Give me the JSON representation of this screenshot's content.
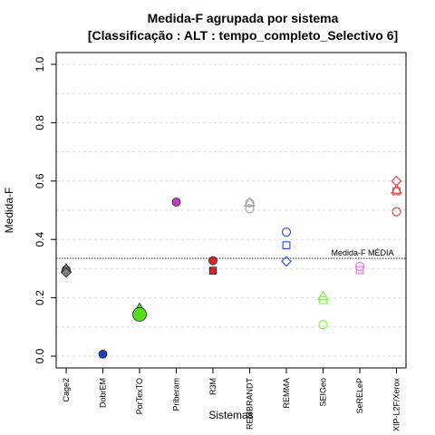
{
  "chart_data": {
    "type": "scatter",
    "title_lines": [
      "Medida-F agrupada por sistema",
      "[Classificação : ALT : tempo_completo_Selectivo 6]"
    ],
    "xlabel": "Sistemas",
    "ylabel": "Medida-F",
    "ylim": [
      0.0,
      1.0
    ],
    "yticks": [
      "0.0",
      "0.2",
      "0.4",
      "0.6",
      "0.8",
      "1.0"
    ],
    "grid": true,
    "categories": [
      "Cage2",
      "DobrEM",
      "PorTexTO",
      "Priberam",
      "R3M",
      "REMBRANDT",
      "REMMA",
      "SEIGeo",
      "SeRELeP",
      "XIP-L2F/Xerox"
    ],
    "reference_line": {
      "label": "Medida-F MÉDIA",
      "value": 0.335,
      "style": "dotted"
    },
    "points": [
      {
        "category": "Cage2",
        "shape": "circle",
        "value": 0.296,
        "color": "#7f7f7f",
        "filled": true
      },
      {
        "category": "Cage2",
        "shape": "triangle",
        "value": 0.3,
        "color": "#7f7f7f",
        "filled": true
      },
      {
        "category": "Cage2",
        "shape": "diamond",
        "value": 0.287,
        "color": "#7f7f7f",
        "filled": true
      },
      {
        "category": "DobrEM",
        "shape": "circle",
        "value": 0.007,
        "color": "#1f3fbf",
        "filled": true
      },
      {
        "category": "PorTexTO",
        "shape": "triangle",
        "value": 0.165,
        "color": "#55dd22",
        "filled": true
      },
      {
        "category": "PorTexTO",
        "shape": "diamond",
        "value": 0.15,
        "color": "#55dd22",
        "filled": true
      },
      {
        "category": "PorTexTO",
        "shape": "square",
        "value": 0.15,
        "color": "#55dd22",
        "filled": true
      },
      {
        "category": "PorTexTO",
        "shape": "circle",
        "value": 0.143,
        "color": "#55dd22",
        "filled": true,
        "size": "large"
      },
      {
        "category": "Priberam",
        "shape": "circle",
        "value": 0.528,
        "color": "#cc33cc",
        "filled": true
      },
      {
        "category": "R3M",
        "shape": "circle",
        "value": 0.327,
        "color": "#dd2222",
        "filled": true
      },
      {
        "category": "R3M",
        "shape": "square",
        "value": 0.293,
        "color": "#dd2222",
        "filled": true
      },
      {
        "category": "REMBRANDT",
        "shape": "triangle",
        "value": 0.526,
        "color": "#a8a8a8",
        "filled": false
      },
      {
        "category": "REMBRANDT",
        "shape": "circle",
        "value": 0.525,
        "color": "#a8a8a8",
        "filled": false
      },
      {
        "category": "REMBRANDT",
        "shape": "circle",
        "value": 0.505,
        "color": "#a8a8a8",
        "filled": false
      },
      {
        "category": "REMMA",
        "shape": "circle",
        "value": 0.425,
        "color": "#3355ee",
        "filled": false
      },
      {
        "category": "REMMA",
        "shape": "square",
        "value": 0.38,
        "color": "#3355ee",
        "filled": false
      },
      {
        "category": "REMMA",
        "shape": "diamond",
        "value": 0.325,
        "color": "#3355ee",
        "filled": false
      },
      {
        "category": "SEIGeo",
        "shape": "triangle",
        "value": 0.205,
        "color": "#88ee55",
        "filled": false
      },
      {
        "category": "SEIGeo",
        "shape": "square",
        "value": 0.192,
        "color": "#88ee55",
        "filled": false
      },
      {
        "category": "SEIGeo",
        "shape": "circle",
        "value": 0.108,
        "color": "#88ee55",
        "filled": false
      },
      {
        "category": "SeRELeP",
        "shape": "circle",
        "value": 0.307,
        "color": "#ee77ee",
        "filled": false
      },
      {
        "category": "SeRELeP",
        "shape": "square",
        "value": 0.295,
        "color": "#ee77ee",
        "filled": false
      },
      {
        "category": "XIP-L2F/Xerox",
        "shape": "diamond",
        "value": 0.6,
        "color": "#ee4444",
        "filled": false
      },
      {
        "category": "XIP-L2F/Xerox",
        "shape": "triangle",
        "value": 0.57,
        "color": "#ee4444",
        "filled": false
      },
      {
        "category": "XIP-L2F/Xerox",
        "shape": "square",
        "value": 0.565,
        "color": "#ee4444",
        "filled": false
      },
      {
        "category": "XIP-L2F/Xerox",
        "shape": "circle",
        "value": 0.495,
        "color": "#ee4444",
        "filled": false
      }
    ]
  }
}
